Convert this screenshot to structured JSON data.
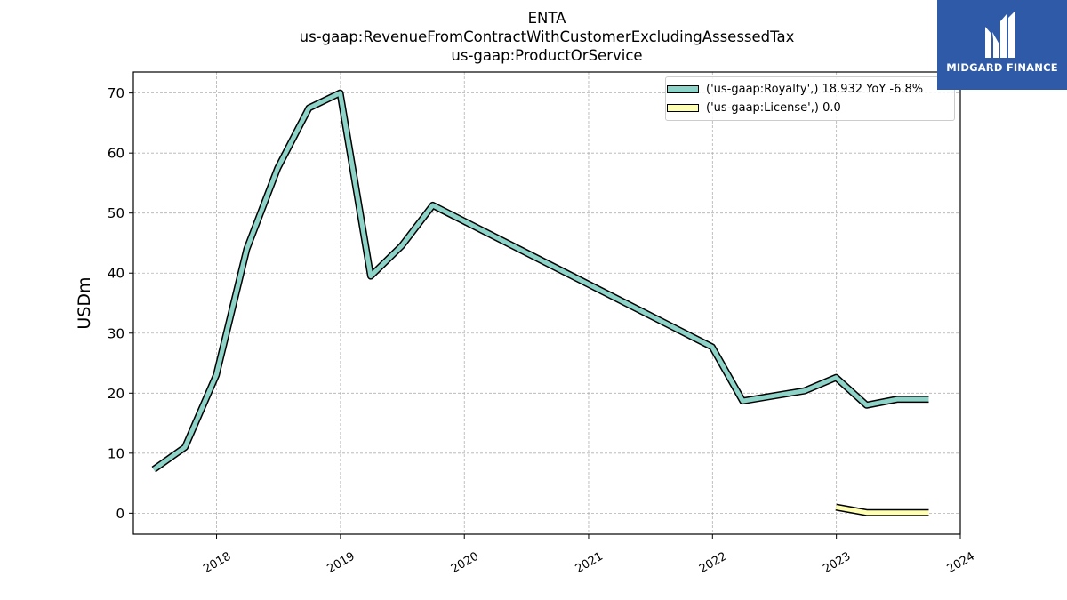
{
  "header": {
    "title_lines": [
      "ENTA",
      "us-gaap:RevenueFromContractWithCustomerExcludingAssessedTax",
      "us-gaap:ProductOrService"
    ]
  },
  "logo": {
    "text": "MIDGARD FINANCE",
    "color": "#2f5aa8"
  },
  "chart_data": {
    "type": "line",
    "title": "ENTA",
    "subtitle": "us-gaap:RevenueFromContractWithCustomerExcludingAssessedTax us-gaap:ProductOrService",
    "xlabel": "",
    "ylabel": "USDm",
    "x_ticks": [
      "2018",
      "2019",
      "2020",
      "2021",
      "2022",
      "2023",
      "2024"
    ],
    "y_ticks": [
      0,
      10,
      20,
      30,
      40,
      50,
      60,
      70
    ],
    "xlim": [
      "2017-05-01",
      "2024-01-01"
    ],
    "ylim": [
      -3.5,
      73.5
    ],
    "grid": true,
    "legend_position": "top-right",
    "series": [
      {
        "name": "('us-gaap:Royalty',) 18.932 YoY -6.8%",
        "color": "#8dd3c7",
        "points": [
          [
            "2017-06-30",
            7.3
          ],
          [
            "2017-09-30",
            11.0
          ],
          [
            "2017-12-31",
            23.0
          ],
          [
            "2018-03-31",
            44.0
          ],
          [
            "2018-06-30",
            57.5
          ],
          [
            "2018-09-30",
            67.5
          ],
          [
            "2018-12-31",
            70.0
          ],
          [
            "2019-03-31",
            39.5
          ],
          [
            "2019-06-30",
            44.5
          ],
          [
            "2019-09-30",
            51.3
          ],
          [
            "2021-12-31",
            27.7
          ],
          [
            "2022-03-31",
            18.7
          ],
          [
            "2022-09-30",
            20.4
          ],
          [
            "2022-12-31",
            22.6
          ],
          [
            "2023-03-31",
            18.0
          ],
          [
            "2023-06-30",
            19.0
          ],
          [
            "2023-09-30",
            19.0
          ]
        ]
      },
      {
        "name": "('us-gaap:License',) 0.0",
        "color": "#ffffb3",
        "points": [
          [
            "2022-12-31",
            1.0
          ],
          [
            "2023-03-31",
            0.1
          ],
          [
            "2023-06-30",
            0.1
          ],
          [
            "2023-09-30",
            0.1
          ]
        ]
      }
    ]
  }
}
